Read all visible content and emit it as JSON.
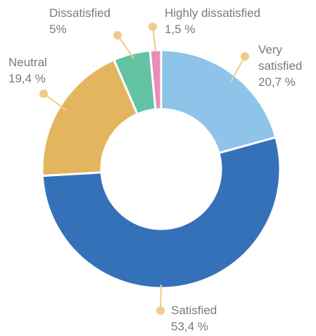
{
  "chart_data": {
    "type": "donut",
    "categories": [
      "Very satisfied",
      "Satisfied",
      "Neutral",
      "Dissatisfied",
      "Highly dissatisfied"
    ],
    "values": [
      20.7,
      53.4,
      19.4,
      5,
      1.5
    ],
    "value_labels": [
      "20,7 %",
      "53,4 %",
      "19,4 %",
      "5%",
      "1,5 %"
    ],
    "colors": [
      "#8ec3ea",
      "#3571b9",
      "#e4b55f",
      "#63c3a4",
      "#ea8cb6"
    ]
  }
}
